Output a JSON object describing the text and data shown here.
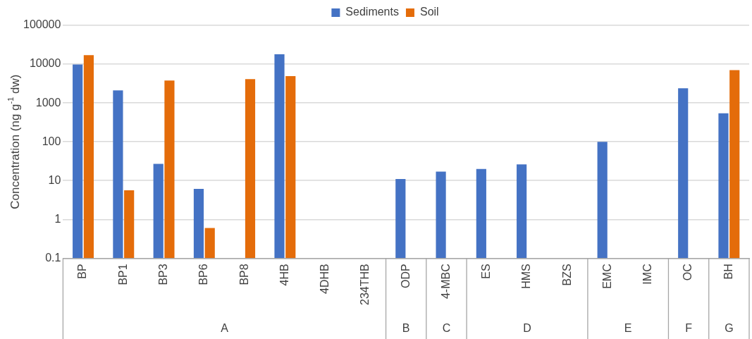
{
  "chart_data": {
    "type": "bar",
    "ylabel": "Concentration (ng g$^{-1}$ dw)",
    "categories": [
      "BP",
      "BP1",
      "BP3",
      "BP6",
      "BP8",
      "4HB",
      "4DHB",
      "234THB",
      "ODP",
      "4-MBC",
      "ES",
      "HMS",
      "BZS",
      "EMC",
      "IMC",
      "OC",
      "BH"
    ],
    "series": [
      {
        "name": "Sediments",
        "color": "#4472c4",
        "values": [
          9800,
          2100,
          27,
          6.1,
          null,
          18000,
          null,
          null,
          11,
          17,
          20,
          26,
          null,
          100,
          null,
          2400,
          540
        ]
      },
      {
        "name": "Soil",
        "color": "#e46c0a",
        "values": [
          17000,
          5.6,
          3800,
          0.6,
          4100,
          4900,
          null,
          null,
          null,
          null,
          null,
          null,
          null,
          null,
          null,
          null,
          7000
        ]
      }
    ],
    "log": "y",
    "ylim": [
      0.1,
      100000
    ],
    "yticks": [
      0.1,
      1,
      10,
      100,
      1000,
      10000,
      100000
    ],
    "grid": "y",
    "legend": "top",
    "annotations": [
      "A",
      "B",
      "C",
      "D",
      "E",
      "F",
      "G"
    ]
  }
}
